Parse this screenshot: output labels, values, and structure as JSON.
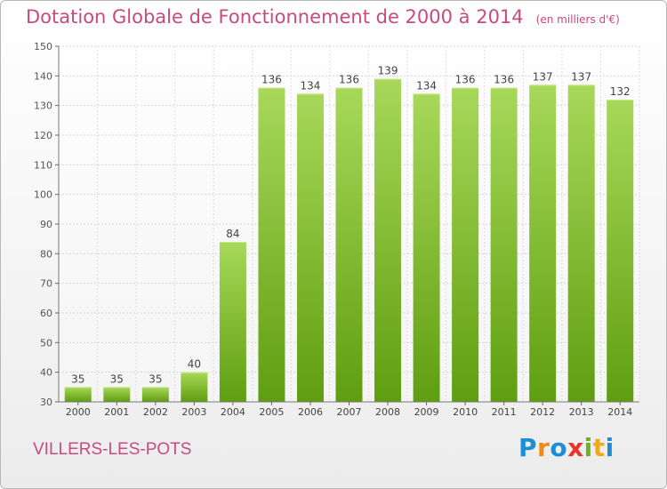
{
  "header": {
    "title": "Dotation Globale de Fonctionnement de 2000 à 2014",
    "subtitle": "(en milliers d'€)"
  },
  "footer": {
    "commune": "VILLERS-LES-POTS",
    "logo_text": "Proxiti"
  },
  "colors": {
    "title": "#c84a7e",
    "bar_top": "#a8d85a",
    "bar_bottom": "#5f9e10"
  },
  "chart_data": {
    "type": "bar",
    "title": "Dotation Globale de Fonctionnement de 2000 à 2014",
    "subtitle": "(en milliers d'€)",
    "xlabel": "",
    "ylabel": "",
    "categories": [
      "2000",
      "2001",
      "2002",
      "2003",
      "2004",
      "2005",
      "2006",
      "2007",
      "2008",
      "2009",
      "2010",
      "2011",
      "2012",
      "2013",
      "2014"
    ],
    "values": [
      35,
      35,
      35,
      40,
      84,
      136,
      134,
      136,
      139,
      134,
      136,
      136,
      137,
      137,
      132
    ],
    "ylim": [
      30,
      150
    ],
    "yticks": [
      30,
      40,
      50,
      60,
      70,
      80,
      90,
      100,
      110,
      120,
      130,
      140,
      150
    ],
    "grid": true,
    "data_labels": true
  }
}
